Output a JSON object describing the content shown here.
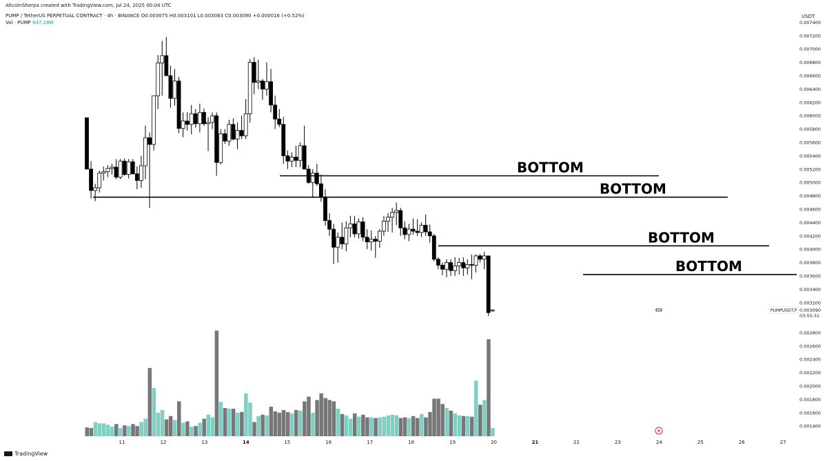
{
  "header": {
    "created_by": "AltcoinSherpa created with TradingView.com, Jul 24, 2025 00:04 UTC",
    "symbol_line": "PUMP / TetherUS PERPETUAL CONTRACT · 4h · BINANCE",
    "ohlc": "O0.003075  H0.003101  L0.003063  C0.003090  +0.000016 (+0.52%)",
    "volume_label": "Vol · PUMP",
    "volume_value": "647.28M"
  },
  "axis": {
    "unit": "USDT",
    "price_ticks": [
      "0.007400",
      "0.007200",
      "0.007000",
      "0.006800",
      "0.006600",
      "0.006400",
      "0.006200",
      "0.006000",
      "0.005800",
      "0.005600",
      "0.005400",
      "0.005200",
      "0.005000",
      "0.004800",
      "0.004600",
      "0.004400",
      "0.004200",
      "0.004000",
      "0.003800",
      "0.003600",
      "0.003400",
      "0.003200",
      "0.002800",
      "0.002600",
      "0.002400",
      "0.002200",
      "0.002000",
      "0.001800",
      "0.001600",
      "0.001400"
    ],
    "date_ticks": [
      "11",
      "12",
      "13",
      "14",
      "15",
      "16",
      "17",
      "18",
      "19",
      "20",
      "21",
      "22",
      "23",
      "24",
      "25",
      "26",
      "27"
    ],
    "last_price_tag": "PUMPUSDT.P",
    "last_price": "0.003090",
    "countdown": "03:55:31"
  },
  "annotations": [
    {
      "label": "BOTTOM",
      "price": 0.0051
    },
    {
      "label": "BOTTOM",
      "price": 0.00478
    },
    {
      "label": "BOTTOM",
      "price": 0.00405
    },
    {
      "label": "BOTTOM",
      "price": 0.00362
    }
  ],
  "footer": {
    "brand": "TradingView"
  },
  "colors": {
    "up_body": "#ffffff",
    "down_body": "#000000",
    "wick": "#000000",
    "vol_up": "#7fcfc3",
    "vol_down": "#777777",
    "line": "#000000"
  },
  "chart_data": {
    "type": "candlestick",
    "timeframe": "4h",
    "candles": [
      {
        "o": 0.00597,
        "h": 0.00597,
        "l": 0.0052,
        "c": 0.0052,
        "v": 0.00138
      },
      {
        "o": 0.0052,
        "h": 0.00532,
        "l": 0.00476,
        "c": 0.00488,
        "v": 0.00137
      },
      {
        "o": 0.00488,
        "h": 0.00498,
        "l": 0.00472,
        "c": 0.00492,
        "v": 0.00146
      },
      {
        "o": 0.00492,
        "h": 0.00518,
        "l": 0.00485,
        "c": 0.00514,
        "v": 0.00144
      },
      {
        "o": 0.00514,
        "h": 0.00524,
        "l": 0.00503,
        "c": 0.00516,
        "v": 0.00144
      },
      {
        "o": 0.00516,
        "h": 0.00526,
        "l": 0.00508,
        "c": 0.00521,
        "v": 0.00142
      },
      {
        "o": 0.00521,
        "h": 0.00528,
        "l": 0.00512,
        "c": 0.00523,
        "v": 0.00139
      },
      {
        "o": 0.00523,
        "h": 0.00535,
        "l": 0.00505,
        "c": 0.00508,
        "v": 0.00143
      },
      {
        "o": 0.00508,
        "h": 0.00535,
        "l": 0.00505,
        "c": 0.00532,
        "v": 0.00137
      },
      {
        "o": 0.00532,
        "h": 0.00536,
        "l": 0.0051,
        "c": 0.00512,
        "v": 0.00141
      },
      {
        "o": 0.00512,
        "h": 0.00535,
        "l": 0.00506,
        "c": 0.00531,
        "v": 0.0014
      },
      {
        "o": 0.00531,
        "h": 0.00535,
        "l": 0.00512,
        "c": 0.00513,
        "v": 0.00143
      },
      {
        "o": 0.00513,
        "h": 0.00524,
        "l": 0.0049,
        "c": 0.00503,
        "v": 0.0014
      },
      {
        "o": 0.00503,
        "h": 0.0054,
        "l": 0.00492,
        "c": 0.00525,
        "v": 0.00146
      },
      {
        "o": 0.00525,
        "h": 0.00585,
        "l": 0.00505,
        "c": 0.00567,
        "v": 0.00151
      },
      {
        "o": 0.00567,
        "h": 0.00575,
        "l": 0.00462,
        "c": 0.00557,
        "v": 0.00227
      },
      {
        "o": 0.00557,
        "h": 0.0063,
        "l": 0.00548,
        "c": 0.0063,
        "v": 0.00197
      },
      {
        "o": 0.0063,
        "h": 0.00691,
        "l": 0.0061,
        "c": 0.00679,
        "v": 0.0016
      },
      {
        "o": 0.00679,
        "h": 0.00712,
        "l": 0.0063,
        "c": 0.0069,
        "v": 0.00164
      },
      {
        "o": 0.0069,
        "h": 0.00718,
        "l": 0.0066,
        "c": 0.0066,
        "v": 0.0015
      },
      {
        "o": 0.0066,
        "h": 0.00675,
        "l": 0.00612,
        "c": 0.00626,
        "v": 0.00155
      },
      {
        "o": 0.00626,
        "h": 0.0067,
        "l": 0.00615,
        "c": 0.00652,
        "v": 0.00149
      },
      {
        "o": 0.00652,
        "h": 0.00658,
        "l": 0.00574,
        "c": 0.00581,
        "v": 0.00177
      },
      {
        "o": 0.00581,
        "h": 0.00605,
        "l": 0.00568,
        "c": 0.00592,
        "v": 0.00145
      },
      {
        "o": 0.00592,
        "h": 0.00605,
        "l": 0.00578,
        "c": 0.00587,
        "v": 0.00147
      },
      {
        "o": 0.00587,
        "h": 0.00616,
        "l": 0.00572,
        "c": 0.00603,
        "v": 0.00139
      },
      {
        "o": 0.00603,
        "h": 0.0061,
        "l": 0.00582,
        "c": 0.00588,
        "v": 0.0014
      },
      {
        "o": 0.00588,
        "h": 0.00618,
        "l": 0.00575,
        "c": 0.00605,
        "v": 0.00145
      },
      {
        "o": 0.00605,
        "h": 0.00611,
        "l": 0.00585,
        "c": 0.00588,
        "v": 0.00151
      },
      {
        "o": 0.00588,
        "h": 0.00598,
        "l": 0.00547,
        "c": 0.0059,
        "v": 0.00157
      },
      {
        "o": 0.0059,
        "h": 0.00605,
        "l": 0.0058,
        "c": 0.006,
        "v": 0.00153
      },
      {
        "o": 0.006,
        "h": 0.00605,
        "l": 0.0051,
        "c": 0.0053,
        "v": 0.00283
      },
      {
        "o": 0.0053,
        "h": 0.0058,
        "l": 0.00527,
        "c": 0.00573,
        "v": 0.00176
      },
      {
        "o": 0.00573,
        "h": 0.0058,
        "l": 0.00558,
        "c": 0.00562,
        "v": 0.00167
      },
      {
        "o": 0.00562,
        "h": 0.00594,
        "l": 0.00555,
        "c": 0.00587,
        "v": 0.00166
      },
      {
        "o": 0.00587,
        "h": 0.00596,
        "l": 0.00563,
        "c": 0.00565,
        "v": 0.00166
      },
      {
        "o": 0.00565,
        "h": 0.0059,
        "l": 0.0055,
        "c": 0.00578,
        "v": 0.0016
      },
      {
        "o": 0.00578,
        "h": 0.006,
        "l": 0.00565,
        "c": 0.0057,
        "v": 0.00161
      },
      {
        "o": 0.0057,
        "h": 0.00625,
        "l": 0.00565,
        "c": 0.00603,
        "v": 0.00189
      },
      {
        "o": 0.00603,
        "h": 0.00685,
        "l": 0.0059,
        "c": 0.0068,
        "v": 0.00175
      },
      {
        "o": 0.0068,
        "h": 0.00688,
        "l": 0.00632,
        "c": 0.0065,
        "v": 0.00146
      },
      {
        "o": 0.0065,
        "h": 0.00684,
        "l": 0.0064,
        "c": 0.00652,
        "v": 0.00155
      },
      {
        "o": 0.00652,
        "h": 0.00655,
        "l": 0.00624,
        "c": 0.0064,
        "v": 0.00157
      },
      {
        "o": 0.0064,
        "h": 0.0068,
        "l": 0.0063,
        "c": 0.00651,
        "v": 0.00156
      },
      {
        "o": 0.00651,
        "h": 0.0067,
        "l": 0.00605,
        "c": 0.00616,
        "v": 0.00169
      },
      {
        "o": 0.00616,
        "h": 0.0063,
        "l": 0.0058,
        "c": 0.00595,
        "v": 0.00162
      },
      {
        "o": 0.00595,
        "h": 0.0061,
        "l": 0.00583,
        "c": 0.00587,
        "v": 0.0016
      },
      {
        "o": 0.00587,
        "h": 0.00598,
        "l": 0.00528,
        "c": 0.0054,
        "v": 0.00164
      },
      {
        "o": 0.0054,
        "h": 0.00548,
        "l": 0.0052,
        "c": 0.00532,
        "v": 0.00161
      },
      {
        "o": 0.00532,
        "h": 0.00545,
        "l": 0.00523,
        "c": 0.00538,
        "v": 0.00159
      },
      {
        "o": 0.00538,
        "h": 0.00555,
        "l": 0.00523,
        "c": 0.00533,
        "v": 0.00164
      },
      {
        "o": 0.00533,
        "h": 0.0056,
        "l": 0.00523,
        "c": 0.00555,
        "v": 0.00163
      },
      {
        "o": 0.00555,
        "h": 0.00585,
        "l": 0.0052,
        "c": 0.0052,
        "v": 0.00177
      },
      {
        "o": 0.0052,
        "h": 0.00526,
        "l": 0.00498,
        "c": 0.005,
        "v": 0.00184
      },
      {
        "o": 0.005,
        "h": 0.0052,
        "l": 0.00477,
        "c": 0.00514,
        "v": 0.0016
      },
      {
        "o": 0.00514,
        "h": 0.00528,
        "l": 0.00495,
        "c": 0.00498,
        "v": 0.00179
      },
      {
        "o": 0.00498,
        "h": 0.00512,
        "l": 0.00471,
        "c": 0.00478,
        "v": 0.00189
      },
      {
        "o": 0.00478,
        "h": 0.0049,
        "l": 0.00435,
        "c": 0.00443,
        "v": 0.00182
      },
      {
        "o": 0.00443,
        "h": 0.00454,
        "l": 0.0042,
        "c": 0.0043,
        "v": 0.00179
      },
      {
        "o": 0.0043,
        "h": 0.00438,
        "l": 0.00378,
        "c": 0.00403,
        "v": 0.00177
      },
      {
        "o": 0.00403,
        "h": 0.00425,
        "l": 0.0038,
        "c": 0.00418,
        "v": 0.00166
      },
      {
        "o": 0.00418,
        "h": 0.0044,
        "l": 0.004,
        "c": 0.00408,
        "v": 0.00158
      },
      {
        "o": 0.00408,
        "h": 0.00442,
        "l": 0.00397,
        "c": 0.00432,
        "v": 0.00156
      },
      {
        "o": 0.00432,
        "h": 0.0045,
        "l": 0.00418,
        "c": 0.00438,
        "v": 0.00151
      },
      {
        "o": 0.00438,
        "h": 0.0045,
        "l": 0.00418,
        "c": 0.00423,
        "v": 0.00159
      },
      {
        "o": 0.00423,
        "h": 0.00446,
        "l": 0.00416,
        "c": 0.00441,
        "v": 0.00154
      },
      {
        "o": 0.00441,
        "h": 0.00448,
        "l": 0.00412,
        "c": 0.00418,
        "v": 0.00157
      },
      {
        "o": 0.00418,
        "h": 0.0043,
        "l": 0.004,
        "c": 0.00411,
        "v": 0.00153
      },
      {
        "o": 0.00411,
        "h": 0.00428,
        "l": 0.00398,
        "c": 0.00415,
        "v": 0.00153
      },
      {
        "o": 0.00415,
        "h": 0.0042,
        "l": 0.00387,
        "c": 0.00412,
        "v": 0.00152
      },
      {
        "o": 0.00412,
        "h": 0.0043,
        "l": 0.00402,
        "c": 0.00427,
        "v": 0.00153
      },
      {
        "o": 0.00427,
        "h": 0.0045,
        "l": 0.0042,
        "c": 0.00442,
        "v": 0.00154
      },
      {
        "o": 0.00442,
        "h": 0.00454,
        "l": 0.00426,
        "c": 0.00448,
        "v": 0.00156
      },
      {
        "o": 0.00448,
        "h": 0.00462,
        "l": 0.00425,
        "c": 0.00455,
        "v": 0.00157
      },
      {
        "o": 0.00455,
        "h": 0.0047,
        "l": 0.00436,
        "c": 0.00458,
        "v": 0.00156
      },
      {
        "o": 0.00458,
        "h": 0.00462,
        "l": 0.0042,
        "c": 0.00432,
        "v": 0.00152
      },
      {
        "o": 0.00432,
        "h": 0.00442,
        "l": 0.00415,
        "c": 0.00422,
        "v": 0.00153
      },
      {
        "o": 0.00422,
        "h": 0.00438,
        "l": 0.00412,
        "c": 0.0043,
        "v": 0.00152
      },
      {
        "o": 0.0043,
        "h": 0.00446,
        "l": 0.00422,
        "c": 0.00427,
        "v": 0.00155
      },
      {
        "o": 0.00427,
        "h": 0.00445,
        "l": 0.0042,
        "c": 0.00425,
        "v": 0.00152
      },
      {
        "o": 0.00425,
        "h": 0.0044,
        "l": 0.00418,
        "c": 0.00436,
        "v": 0.00158
      },
      {
        "o": 0.00436,
        "h": 0.00452,
        "l": 0.0042,
        "c": 0.00426,
        "v": 0.00153
      },
      {
        "o": 0.00426,
        "h": 0.00437,
        "l": 0.0041,
        "c": 0.0042,
        "v": 0.00161
      },
      {
        "o": 0.0042,
        "h": 0.00423,
        "l": 0.00382,
        "c": 0.00385,
        "v": 0.00181
      },
      {
        "o": 0.00385,
        "h": 0.00388,
        "l": 0.0037,
        "c": 0.00376,
        "v": 0.00181
      },
      {
        "o": 0.00376,
        "h": 0.0038,
        "l": 0.00361,
        "c": 0.0037,
        "v": 0.00173
      },
      {
        "o": 0.0037,
        "h": 0.00385,
        "l": 0.00358,
        "c": 0.0038,
        "v": 0.00167
      },
      {
        "o": 0.0038,
        "h": 0.00385,
        "l": 0.0036,
        "c": 0.00368,
        "v": 0.00163
      },
      {
        "o": 0.00368,
        "h": 0.00388,
        "l": 0.0036,
        "c": 0.00375,
        "v": 0.00159
      },
      {
        "o": 0.00375,
        "h": 0.00387,
        "l": 0.00362,
        "c": 0.0038,
        "v": 0.00156
      },
      {
        "o": 0.0038,
        "h": 0.00388,
        "l": 0.0036,
        "c": 0.00372,
        "v": 0.00155
      },
      {
        "o": 0.00372,
        "h": 0.00385,
        "l": 0.00362,
        "c": 0.00377,
        "v": 0.00155
      },
      {
        "o": 0.00377,
        "h": 0.00392,
        "l": 0.00355,
        "c": 0.00376,
        "v": 0.00154
      },
      {
        "o": 0.00376,
        "h": 0.00392,
        "l": 0.00365,
        "c": 0.0039,
        "v": 0.00208
      },
      {
        "o": 0.0039,
        "h": 0.00393,
        "l": 0.0038,
        "c": 0.00385,
        "v": 0.00172
      },
      {
        "o": 0.00385,
        "h": 0.00396,
        "l": 0.0037,
        "c": 0.0039,
        "v": 0.00179
      },
      {
        "o": 0.0039,
        "h": 0.0039,
        "l": 0.003,
        "c": 0.00305,
        "v": 0.0027
      },
      {
        "o": 0.003075,
        "h": 0.003101,
        "l": 0.003063,
        "c": 0.00309,
        "v": 0.00137
      }
    ]
  }
}
